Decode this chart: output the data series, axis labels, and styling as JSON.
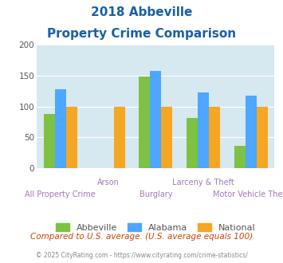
{
  "title_line1": "2018 Abbeville",
  "title_line2": "Property Crime Comparison",
  "categories": [
    "All Property Crime",
    "Arson",
    "Burglary",
    "Larceny & Theft",
    "Motor Vehicle Theft"
  ],
  "series": {
    "Abbeville": [
      88,
      null,
      148,
      81,
      36
    ],
    "Alabama": [
      128,
      null,
      158,
      123,
      118
    ],
    "National": [
      100,
      100,
      100,
      100,
      100
    ]
  },
  "colors": {
    "Abbeville": "#7dc243",
    "Alabama": "#4da6ff",
    "National": "#f5a623"
  },
  "ylim": [
    0,
    200
  ],
  "yticks": [
    0,
    50,
    100,
    150,
    200
  ],
  "background_color": "#d6e8f0",
  "title_color": "#1a5fa8",
  "xlabel_color": "#9e7bb5",
  "footer_text": "Compared to U.S. average. (U.S. average equals 100)",
  "footer_color": "#cc4400",
  "credit_text": "© 2025 CityRating.com - https://www.cityrating.com/crime-statistics/",
  "credit_color": "#888888"
}
